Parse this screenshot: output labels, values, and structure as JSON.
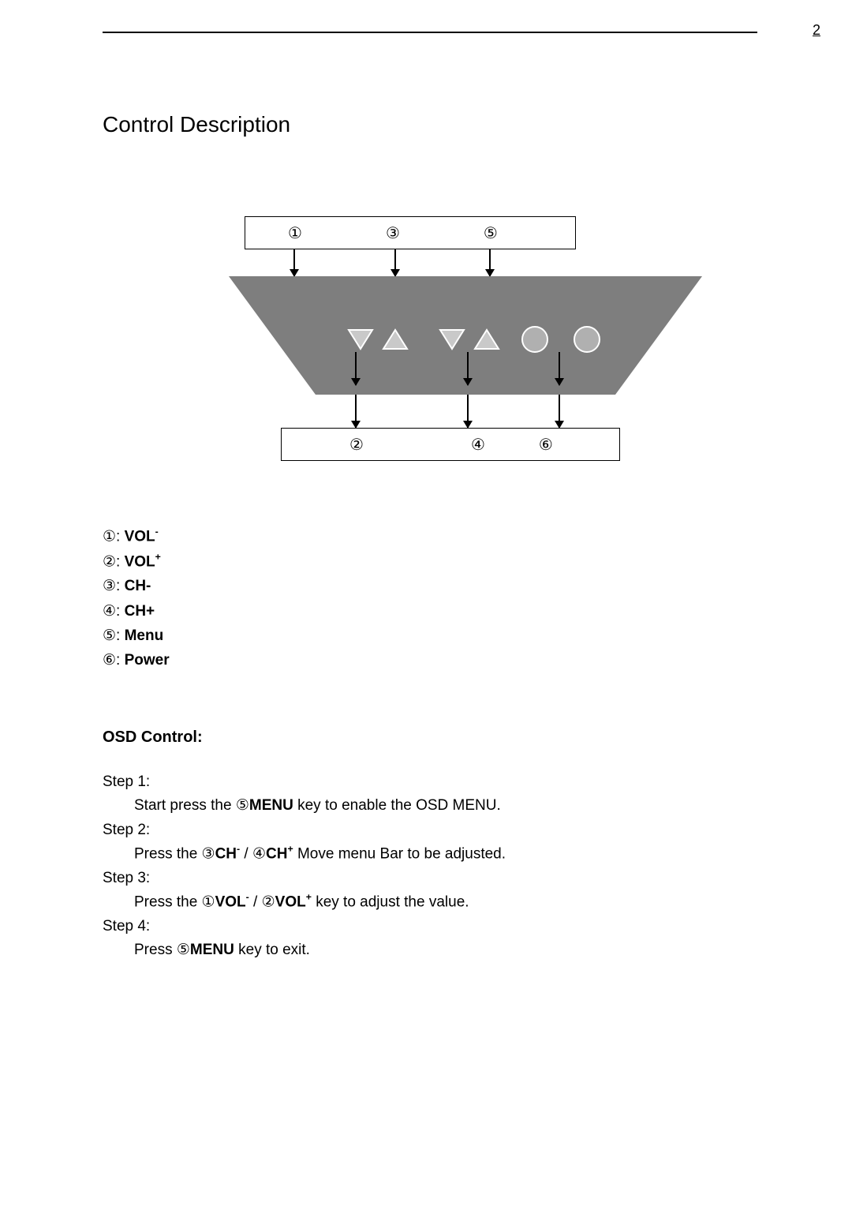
{
  "page_number": "2",
  "title": "Control Description",
  "diagram": {
    "top_labels": [
      "①",
      "③",
      "⑤"
    ],
    "bottom_labels": [
      "②",
      "④",
      "⑥"
    ],
    "panel_color": "#7e7e7e",
    "button_face": "#c9c9c9",
    "button_stroke": "#ffffff",
    "circle_fill": "#b0b0b0"
  },
  "legend": [
    {
      "num": "①",
      "label": "VOL",
      "sup": "-"
    },
    {
      "num": "②",
      "label": "VOL",
      "sup": "+",
      "prefix_space": true
    },
    {
      "num": "③",
      "label": "CH-"
    },
    {
      "num": "④",
      "label": "CH+"
    },
    {
      "num": "⑤",
      "label": "Menu"
    },
    {
      "num": "⑥",
      "label": "Power"
    }
  ],
  "osd": {
    "heading": "OSD Control:",
    "steps": [
      {
        "title": "Step 1:",
        "parts": [
          "Start press the  ⑤",
          {
            "b": "MENU"
          },
          " key to enable the OSD MENU."
        ]
      },
      {
        "title": "Step 2:",
        "parts": [
          "Press the  ③",
          {
            "b": "CH"
          },
          {
            "sup": "-"
          },
          " /  ④",
          {
            "b": "CH"
          },
          {
            "sup": "+"
          },
          " Move menu Bar to be adjusted."
        ]
      },
      {
        "title": "Step 3:",
        "parts": [
          "Press the  ①",
          {
            "b": "VOL"
          },
          {
            "sup": "-"
          },
          " /  ②",
          {
            "b": "VOL"
          },
          {
            "sup": "+"
          },
          " key to adjust the value."
        ]
      },
      {
        "title": "Step 4:",
        "parts": [
          "Press  ⑤",
          {
            "b": "MENU"
          },
          " key to exit."
        ]
      }
    ]
  }
}
